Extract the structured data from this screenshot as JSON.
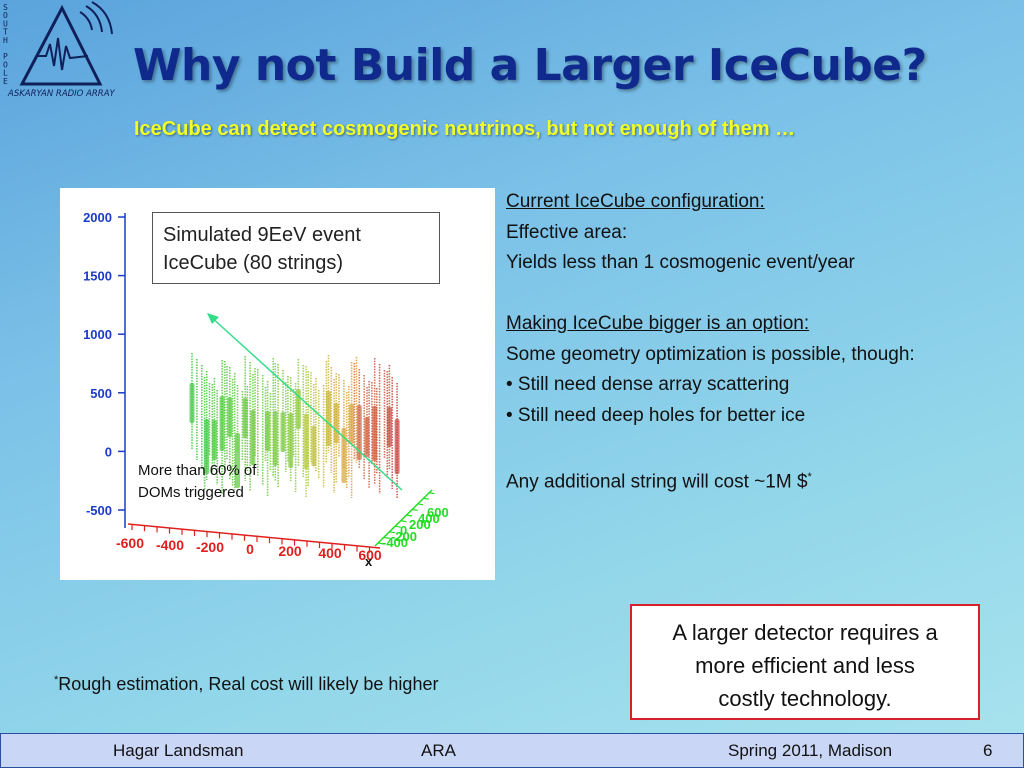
{
  "logo": {
    "side_text": [
      "S",
      "O",
      "U",
      "T",
      "H",
      " ",
      "P",
      "O",
      "L",
      "E"
    ],
    "bottom_text": "ASKARYAN RADIO ARRAY"
  },
  "title": "Why not Build a Larger IceCube?",
  "subtitle": "IceCube can detect cosmogenic neutrinos, but not enough of them …",
  "plot": {
    "box_lines": [
      "Simulated 9EeV event",
      "IceCube (80 strings)"
    ],
    "note_lines": [
      "More than 60% of",
      "DOMs  triggered"
    ],
    "y_ticks": [
      "2000",
      "1500",
      "1000",
      "500",
      "0",
      "-500"
    ],
    "x_ticks": [
      "-600",
      "-400",
      "-200",
      "0",
      "200",
      "400",
      "600"
    ],
    "x_label": "x",
    "depth_ticks": [
      "600",
      "400",
      "200",
      "0",
      "-200",
      "-400"
    ]
  },
  "right": {
    "heading1": "Current IceCube configuration:",
    "line1": "Effective area:",
    "line2": "Yields less than 1 cosmogenic event/year",
    "heading2": "Making IceCube bigger is an option:",
    "line3": "Some geometry optimization is possible, though:",
    "bullet1": "• Still need  dense array scattering",
    "bullet2": "• Still need deep holes for better ice",
    "cost_line": "Any additional string will cost  ~1M $",
    "cost_mark": "*"
  },
  "footnote": {
    "mark": "*",
    "text": "Rough estimation, Real cost will likely be higher"
  },
  "callout": [
    "A  larger detector requires a",
    "more efficient and less",
    "costly technology."
  ],
  "footer": {
    "author": "Hagar Landsman",
    "project": "ARA",
    "event": "Spring 2011, Madison",
    "page": "6"
  },
  "colors": {
    "title": "#0f2a8c",
    "subtitle": "#f0ff28",
    "axis_y": "#1a3cc8",
    "axis_x": "#e0201e",
    "axis_depth": "#22dd22",
    "callout_border": "#d8202a"
  }
}
